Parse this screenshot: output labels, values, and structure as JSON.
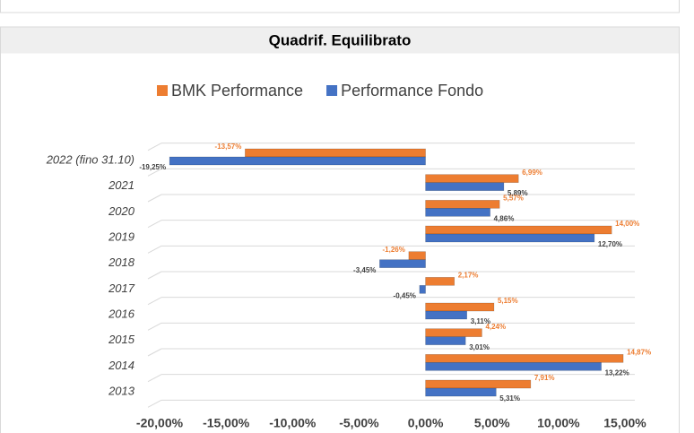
{
  "chart_data": {
    "type": "bar",
    "orientation": "horizontal",
    "title": "Quadrif. Equilibrato",
    "categories": [
      "2022 (fino 31.10)",
      "2021",
      "2020",
      "2019",
      "2018",
      "2017",
      "2016",
      "2015",
      "2014",
      "2013"
    ],
    "series": [
      {
        "name": "BMK Performance",
        "color": "#ed7d31",
        "values": [
          -13.57,
          6.99,
          5.57,
          14.0,
          -1.26,
          2.17,
          5.15,
          4.24,
          14.87,
          7.91
        ],
        "value_labels": [
          "-13,57%",
          "6,99%",
          "5,57%",
          "14,00%",
          "-1,26%",
          "2,17%",
          "5,15%",
          "4,24%",
          "14,87%",
          "7,91%"
        ]
      },
      {
        "name": "Performance Fondo",
        "color": "#4472c4",
        "values": [
          -19.25,
          5.89,
          4.86,
          12.7,
          -3.45,
          -0.45,
          3.11,
          3.01,
          13.22,
          5.31
        ],
        "value_labels": [
          "-19,25%",
          "5,89%",
          "4,86%",
          "12,70%",
          "-3,45%",
          "-0,45%",
          "3,11%",
          "3,01%",
          "13,22%",
          "5,31%"
        ]
      }
    ],
    "xlim": [
      -20,
      15
    ],
    "xticks": [
      {
        "value": -20,
        "label": "-20,00%"
      },
      {
        "value": -15,
        "label": "-15,00%"
      },
      {
        "value": -10,
        "label": "-10,00%"
      },
      {
        "value": -5,
        "label": "-5,00%"
      },
      {
        "value": 0,
        "label": "0,00%"
      },
      {
        "value": 5,
        "label": "5,00%"
      },
      {
        "value": 10,
        "label": "10,00%"
      },
      {
        "value": 15,
        "label": "15,00%"
      }
    ],
    "legend": "top"
  }
}
